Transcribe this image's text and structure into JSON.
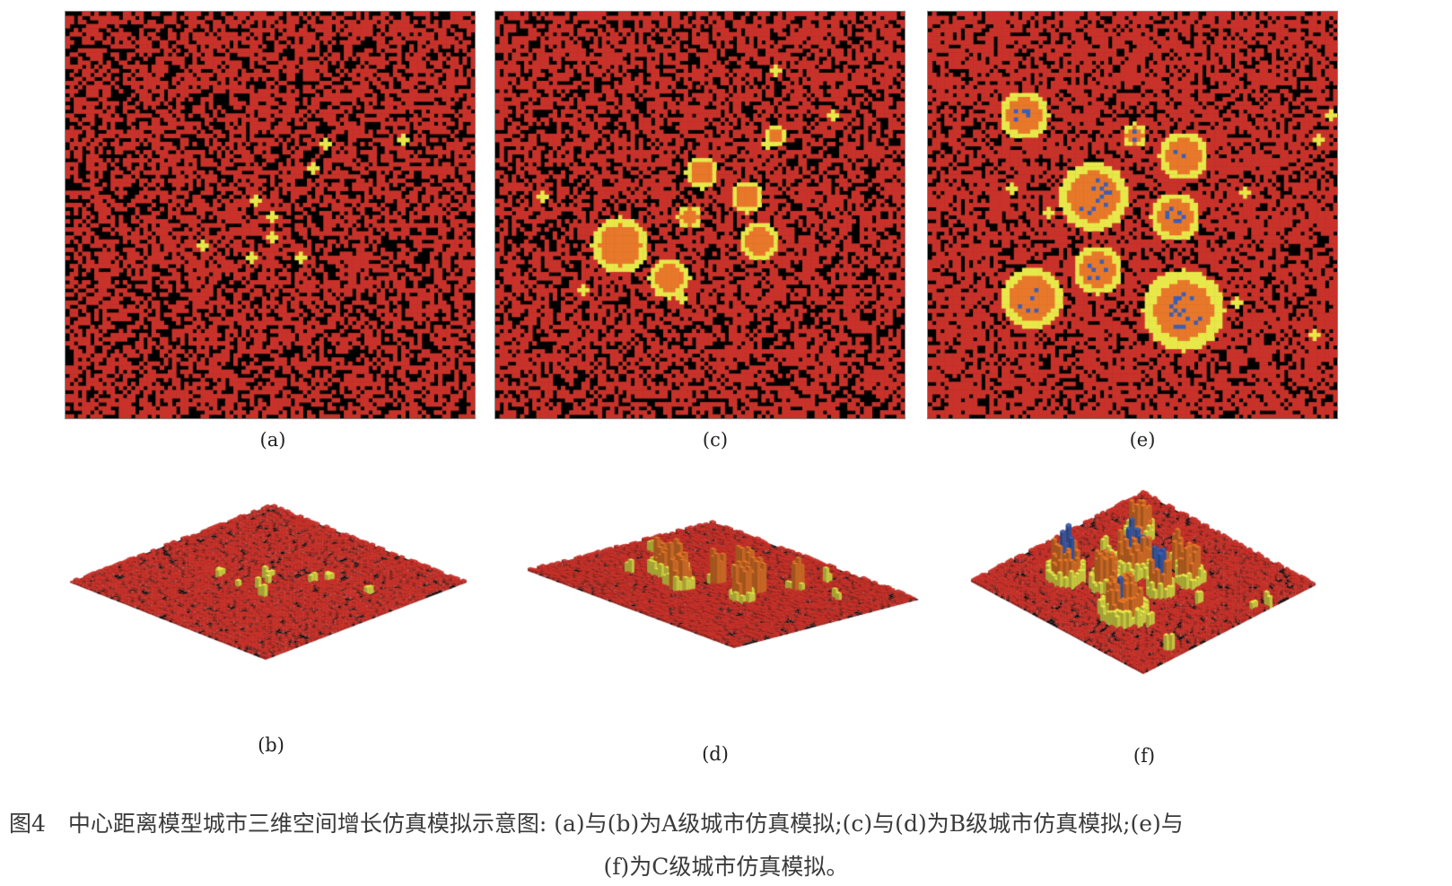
{
  "figure": {
    "panels": [
      {
        "id": "a",
        "label": "(a)",
        "view": "2d",
        "city_class": "A"
      },
      {
        "id": "c",
        "label": "(c)",
        "view": "2d",
        "city_class": "B"
      },
      {
        "id": "e",
        "label": "(e)",
        "view": "2d",
        "city_class": "C"
      },
      {
        "id": "b",
        "label": "(b)",
        "view": "3d",
        "city_class": "A"
      },
      {
        "id": "d",
        "label": "(d)",
        "view": "3d",
        "city_class": "B"
      },
      {
        "id": "f",
        "label": "(f)",
        "view": "3d",
        "city_class": "C"
      }
    ],
    "colors": {
      "background_cell": "#000000",
      "base_cell": "#c8322a",
      "level_2": "#e8e84a",
      "level_3": "#e8782a",
      "level_4": "#3a5fb8"
    },
    "caption_line1": "图4　中心距离模型城市三维空间增长仿真模拟示意图: (a)与(b)为A级城市仿真模拟;(c)与(d)为B级城市仿真模拟;(e)与",
    "caption_line2": "(f)为C级城市仿真模拟。"
  }
}
